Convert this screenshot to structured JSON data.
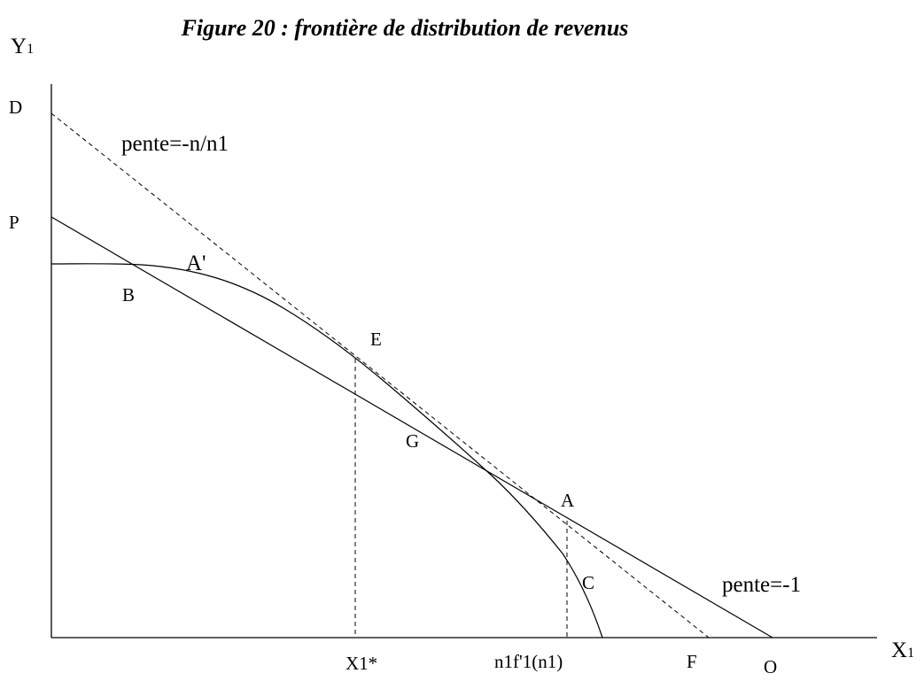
{
  "title": "Figure 20 : frontière de distribution de revenus",
  "y_axis": {
    "letter": "Y",
    "subscript": "1"
  },
  "x_axis": {
    "letter": "X",
    "subscript": "1"
  },
  "points": {
    "D": "D",
    "P": "P",
    "A_prime": "A'",
    "B": "B",
    "E": "E",
    "G": "G",
    "A": "A",
    "C": "C",
    "F": "F",
    "O": "O"
  },
  "x_marks": {
    "x1_star": "X1*",
    "n1f1": "n1f'1(n1)"
  },
  "slopes": {
    "dashed": "pente=-n/n1",
    "solid": "pente=-1"
  }
}
